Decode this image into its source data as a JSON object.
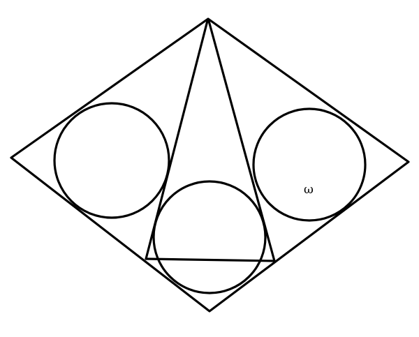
{
  "figure": {
    "outline": "rhombus",
    "inner_shape": "triangle",
    "circle_count": 3
  },
  "labels": {
    "circle_mark": "ω"
  },
  "colors": {
    "line": "#000000",
    "background": "#ffffff"
  }
}
